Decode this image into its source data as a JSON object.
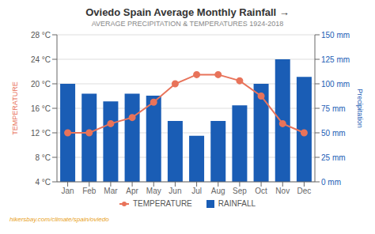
{
  "chart_data": {
    "type": "bar",
    "title": "Oviedo Spain Average Monthly Rainfall →",
    "subtitle": "AVERAGE PRECIPITATION & TEMPERATURES 1924-2018",
    "footer": "hikersbay.com/climate/spain/oviedo",
    "categories": [
      "Jan",
      "Feb",
      "Mar",
      "Apr",
      "May",
      "Jun",
      "Jul",
      "Aug",
      "Sep",
      "Oct",
      "Nov",
      "Dec"
    ],
    "series": [
      {
        "name": "TEMPERATURE",
        "type": "line",
        "marker": "circle",
        "color": "#e8735a",
        "axis": "y",
        "values": [
          12.0,
          12.0,
          13.5,
          14.5,
          17.0,
          20.0,
          21.5,
          21.5,
          20.5,
          18.0,
          13.5,
          12.0
        ]
      },
      {
        "name": "RAINFALL",
        "color": "#1a5db5",
        "axis": "y2",
        "values": [
          100,
          90,
          82,
          90,
          88,
          62,
          47,
          62,
          78,
          100,
          125,
          107
        ]
      }
    ],
    "ylabel": "TEMPERATURE",
    "y2label": "Precipitation",
    "ylim": [
      4,
      28
    ],
    "yticks": [
      {
        "value": 4,
        "label": "4 °C"
      },
      {
        "value": 8,
        "label": "8 °C"
      },
      {
        "value": 12,
        "label": "12 °C"
      },
      {
        "value": 16,
        "label": "16 °C"
      },
      {
        "value": 20,
        "label": "20 °C"
      },
      {
        "value": 24,
        "label": "24 °C"
      },
      {
        "value": 28,
        "label": "28 °C"
      }
    ],
    "y2lim": [
      0,
      150
    ],
    "y2ticks": [
      {
        "value": 0,
        "label": "0 mm"
      },
      {
        "value": 25,
        "label": "25 mm"
      },
      {
        "value": 50,
        "label": "50 mm"
      },
      {
        "value": 75,
        "label": "75 mm"
      },
      {
        "value": 100,
        "label": "100 mm"
      },
      {
        "value": 125,
        "label": "125 mm"
      },
      {
        "value": 150,
        "label": "150 mm"
      }
    ],
    "grid": true,
    "legend": "bottom"
  }
}
